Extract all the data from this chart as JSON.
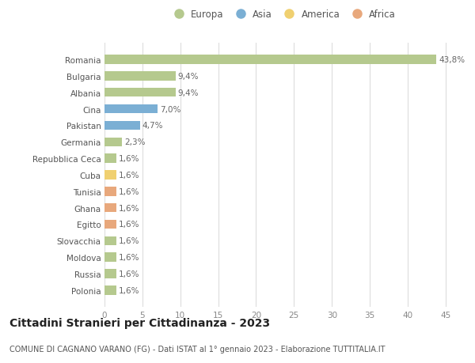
{
  "countries": [
    "Romania",
    "Bulgaria",
    "Albania",
    "Cina",
    "Pakistan",
    "Germania",
    "Repubblica Ceca",
    "Cuba",
    "Tunisia",
    "Ghana",
    "Egitto",
    "Slovacchia",
    "Moldova",
    "Russia",
    "Polonia"
  ],
  "values": [
    43.8,
    9.4,
    9.4,
    7.0,
    4.7,
    2.3,
    1.6,
    1.6,
    1.6,
    1.6,
    1.6,
    1.6,
    1.6,
    1.6,
    1.6
  ],
  "labels": [
    "43,8%",
    "9,4%",
    "9,4%",
    "7,0%",
    "4,7%",
    "2,3%",
    "1,6%",
    "1,6%",
    "1,6%",
    "1,6%",
    "1,6%",
    "1,6%",
    "1,6%",
    "1,6%",
    "1,6%"
  ],
  "continents": [
    "Europa",
    "Europa",
    "Europa",
    "Asia",
    "Asia",
    "Europa",
    "Europa",
    "America",
    "Africa",
    "Africa",
    "Africa",
    "Europa",
    "Europa",
    "Europa",
    "Europa"
  ],
  "continent_colors": {
    "Europa": "#b5c98e",
    "Asia": "#7bafd4",
    "America": "#f0d070",
    "Africa": "#e8a87c"
  },
  "legend_order": [
    "Europa",
    "Asia",
    "America",
    "Africa"
  ],
  "title": "Cittadini Stranieri per Cittadinanza - 2023",
  "subtitle": "COMUNE DI CAGNANO VARANO (FG) - Dati ISTAT al 1° gennaio 2023 - Elaborazione TUTTITALIA.IT",
  "xlim": [
    0,
    47
  ],
  "xticks": [
    0,
    5,
    10,
    15,
    20,
    25,
    30,
    35,
    40,
    45
  ],
  "background_color": "#ffffff",
  "grid_color": "#dddddd",
  "bar_height": 0.55,
  "label_fontsize": 7.5,
  "tick_fontsize": 7.5,
  "title_fontsize": 10,
  "subtitle_fontsize": 7
}
